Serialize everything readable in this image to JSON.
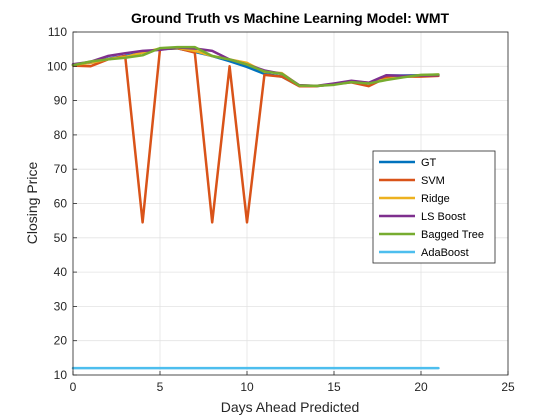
{
  "chart_data": {
    "type": "line",
    "title": "Ground Truth vs Machine Learning Model: WMT",
    "xlabel": "Days Ahead Predicted",
    "ylabel": "Closing Price",
    "xlim": [
      0,
      25
    ],
    "ylim": [
      10,
      110
    ],
    "xticks": [
      0,
      5,
      10,
      15,
      20,
      25
    ],
    "yticks": [
      10,
      20,
      30,
      40,
      50,
      60,
      70,
      80,
      90,
      100,
      110
    ],
    "grid": true,
    "legend_position": "right",
    "x": [
      0,
      1,
      2,
      3,
      4,
      5,
      6,
      7,
      8,
      9,
      10,
      11,
      12,
      13,
      14,
      15,
      16,
      17,
      18,
      19,
      20,
      21
    ],
    "series": [
      {
        "name": "GT",
        "color": "#0072BD",
        "values": [
          100.5,
          101.0,
          102.2,
          103.0,
          104.0,
          105.0,
          105.2,
          104.2,
          103.0,
          101.5,
          99.8,
          97.8,
          97.0,
          94.3,
          94.2,
          94.8,
          95.5,
          95.0,
          97.3,
          97.3,
          97.4,
          97.5
        ]
      },
      {
        "name": "SVM",
        "color": "#D95319",
        "values": [
          100.2,
          100.0,
          102.0,
          103.0,
          54.5,
          105.0,
          105.3,
          104.0,
          54.5,
          100.0,
          54.5,
          97.5,
          97.0,
          94.2,
          94.2,
          94.8,
          95.3,
          94.2,
          96.7,
          97.0,
          97.0,
          97.2
        ]
      },
      {
        "name": "Ridge",
        "color": "#EDB120",
        "values": [
          100.4,
          101.0,
          102.1,
          102.7,
          104.0,
          105.2,
          105.4,
          104.5,
          103.0,
          102.0,
          101.0,
          98.4,
          98.0,
          94.4,
          94.3,
          94.8,
          95.6,
          95.2,
          96.2,
          97.0,
          97.4,
          97.6
        ]
      },
      {
        "name": "LS Boost",
        "color": "#7E2F8E",
        "values": [
          100.6,
          101.3,
          103.0,
          103.8,
          104.5,
          104.8,
          105.5,
          105.2,
          104.5,
          102.0,
          100.5,
          98.8,
          97.8,
          94.5,
          94.3,
          95.0,
          95.8,
          95.2,
          97.4,
          97.2,
          97.3,
          97.4
        ]
      },
      {
        "name": "Bagged Tree",
        "color": "#77AC30",
        "values": [
          100.3,
          101.4,
          102.0,
          102.5,
          103.2,
          105.3,
          105.6,
          105.6,
          103.0,
          102.0,
          100.5,
          98.5,
          97.8,
          94.4,
          94.3,
          94.6,
          95.4,
          95.0,
          96.0,
          96.8,
          97.5,
          97.6
        ]
      },
      {
        "name": "AdaBoost",
        "color": "#4DBEEE",
        "values": [
          12,
          12,
          12,
          12,
          12,
          12,
          12,
          12,
          12,
          12,
          12,
          12,
          12,
          12,
          12,
          12,
          12,
          12,
          12,
          12,
          12,
          12
        ]
      }
    ]
  }
}
